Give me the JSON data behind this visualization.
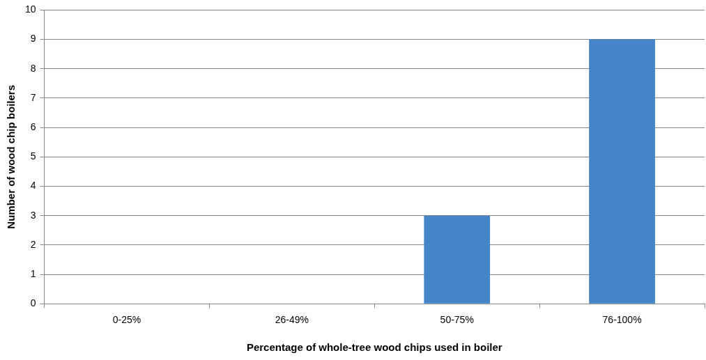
{
  "chart_data": {
    "type": "bar",
    "xlabel": "Percentage of whole-tree wood chips used in boiler",
    "ylabel": "Number of wood chip boilers",
    "categories": [
      "0-25%",
      "26-49%",
      "50-75%",
      "76-100%"
    ],
    "values": [
      0,
      0,
      3,
      9
    ],
    "color": "#4584c8",
    "ylim": [
      0,
      10
    ],
    "yticks": [
      0,
      1,
      2,
      3,
      4,
      5,
      6,
      7,
      8,
      9,
      10
    ],
    "grid": "y",
    "legend": false
  }
}
